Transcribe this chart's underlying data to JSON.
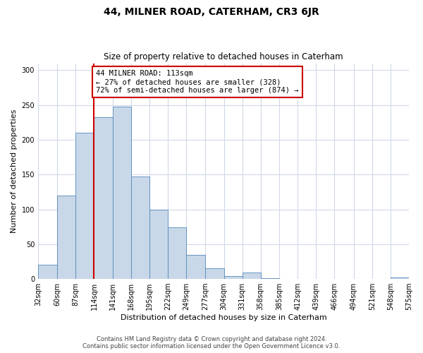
{
  "title": "44, MILNER ROAD, CATERHAM, CR3 6JR",
  "subtitle": "Size of property relative to detached houses in Caterham",
  "xlabel": "Distribution of detached houses by size in Caterham",
  "ylabel": "Number of detached properties",
  "bin_edges": [
    32,
    60,
    87,
    114,
    141,
    168,
    195,
    222,
    249,
    277,
    304,
    331,
    358,
    385,
    412,
    439,
    466,
    494,
    521,
    548,
    575
  ],
  "bin_labels": [
    "32sqm",
    "60sqm",
    "87sqm",
    "114sqm",
    "141sqm",
    "168sqm",
    "195sqm",
    "222sqm",
    "249sqm",
    "277sqm",
    "304sqm",
    "331sqm",
    "358sqm",
    "385sqm",
    "412sqm",
    "439sqm",
    "466sqm",
    "494sqm",
    "521sqm",
    "548sqm",
    "575sqm"
  ],
  "counts": [
    20,
    120,
    210,
    232,
    248,
    147,
    100,
    74,
    35,
    15,
    4,
    9,
    1,
    0,
    0,
    0,
    0,
    0,
    0,
    2
  ],
  "bar_color": "#c8d8e8",
  "bar_edge_color": "#5588bb",
  "vline_x": 114,
  "vline_color": "#cc0000",
  "annotation_text": "44 MILNER ROAD: 113sqm\n← 27% of detached houses are smaller (328)\n72% of semi-detached houses are larger (874) →",
  "annotation_box_color": "#ffffff",
  "annotation_box_edge": "#cc0000",
  "ylim": [
    0,
    310
  ],
  "yticks": [
    0,
    50,
    100,
    150,
    200,
    250,
    300
  ],
  "footer_line1": "Contains HM Land Registry data © Crown copyright and database right 2024.",
  "footer_line2": "Contains public sector information licensed under the Open Government Licence v3.0.",
  "bg_color": "#ffffff",
  "grid_color": "#d0d8e8",
  "title_fontsize": 10,
  "subtitle_fontsize": 8.5,
  "ylabel_fontsize": 8,
  "xlabel_fontsize": 8,
  "tick_fontsize": 7,
  "annotation_fontsize": 7.5,
  "footer_fontsize": 6,
  "footer_color": "#444444"
}
